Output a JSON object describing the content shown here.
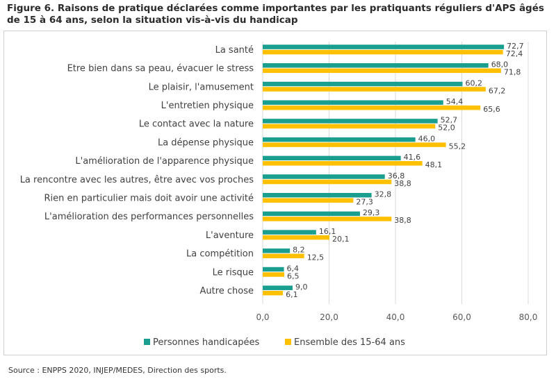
{
  "title": "Figure 6. Raisons de pratique déclarées comme importantes par les pratiquants réguliers d'APS âgés de 15 à 64 ans, selon la situation vis-à-vis du handicap",
  "source": "Source : ENPPS 2020, INJEP/MEDES, Direction des sports.",
  "chart_data": {
    "type": "bar",
    "orientation": "horizontal",
    "categories": [
      "La santé",
      "Etre bien dans sa peau, évacuer le stress",
      "Le plaisir, l'amusement",
      "L'entretien physique",
      "Le contact avec la nature",
      "La dépense physique",
      "L'amélioration de l'apparence physique",
      "La rencontre avec les autres, être avec vos proches",
      "Rien en particulier mais doit avoir une activité",
      "L'amélioration des performances personnelles",
      "L'aventure",
      "La compétition",
      "Le risque",
      "Autre chose"
    ],
    "series": [
      {
        "name": "Personnes handicapées",
        "color": "#1a9e8f",
        "values": [
          72.7,
          68.0,
          60.2,
          54.4,
          52.7,
          46.0,
          41.6,
          36.8,
          32.8,
          29.3,
          16.1,
          8.2,
          6.4,
          9.0
        ],
        "labels": [
          "72,7",
          "68,0",
          "60,2",
          "54,4",
          "52,7",
          "46,0",
          "41,6",
          "36,8",
          "32,8",
          "29,3",
          "16,1",
          "8,2",
          "6,4",
          "9,0"
        ]
      },
      {
        "name": "Ensemble des 15-64 ans",
        "color": "#ffc000",
        "values": [
          72.4,
          71.8,
          67.2,
          65.6,
          52.0,
          55.2,
          48.1,
          38.8,
          27.3,
          38.8,
          20.1,
          12.5,
          6.5,
          6.1
        ],
        "labels": [
          "72,4",
          "71,8",
          "67,2",
          "65,6",
          "52,0",
          "55,2",
          "48,1",
          "38,8",
          "27,3",
          "38,8",
          "20,1",
          "12,5",
          "6,5",
          "6,1"
        ]
      }
    ],
    "xlim": [
      0,
      80
    ],
    "xticks": [
      0,
      20,
      40,
      60,
      80
    ],
    "xtick_labels": [
      "0,0",
      "20,0",
      "40,0",
      "60,0",
      "80,0"
    ],
    "grid": true,
    "legend": "bottom"
  }
}
